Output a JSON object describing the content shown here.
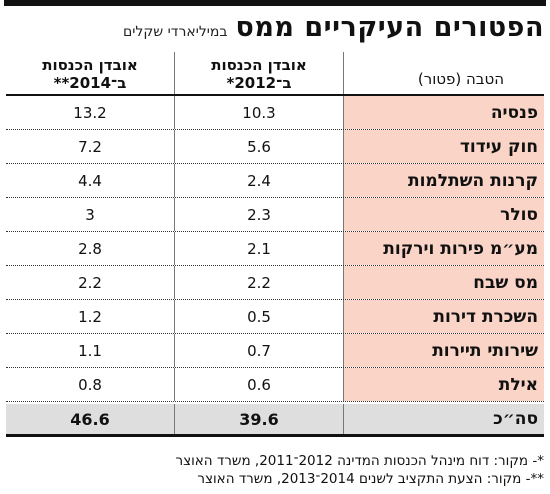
{
  "title": "הפטורים העיקריים ממס",
  "subtitle": "במיליארדי שקלים",
  "columns": {
    "name": "הטבה (פטור)",
    "y2012": [
      "אובדן הכנסות",
      "ב־2012*"
    ],
    "y2014": [
      "אובדן הכנסות",
      "ב־2014**"
    ]
  },
  "rows": [
    {
      "name": "פנסיה",
      "v2012": "10.3",
      "v2014": "13.2"
    },
    {
      "name": "חוק עידוד",
      "v2012": "5.6",
      "v2014": "7.2"
    },
    {
      "name": "קרנות השתלמות",
      "v2012": "2.4",
      "v2014": "4.4"
    },
    {
      "name": "סולר",
      "v2012": "2.3",
      "v2014": "3"
    },
    {
      "name": "מע״מ פירות וירקות",
      "v2012": "2.1",
      "v2014": "2.8"
    },
    {
      "name": "מס שבח",
      "v2012": "2.2",
      "v2014": "2.2"
    },
    {
      "name": "השכרת דירות",
      "v2012": "0.5",
      "v2014": "1.2"
    },
    {
      "name": "שירותי תיירות",
      "v2012": "0.7",
      "v2014": "1.1"
    },
    {
      "name": "אילת",
      "v2012": "0.6",
      "v2014": "0.8"
    }
  ],
  "total": {
    "name": "סה״כ",
    "v2012": "39.6",
    "v2014": "46.6"
  },
  "notes": [
    "*- מקור: דוח מינהל הכנסות המדינה 2012־2011, משרד האוצר",
    "**- מקור: הצעת התקציב לשנים 2014־2013, משרד האוצר"
  ],
  "colors": {
    "highlight": "#f9d4c7",
    "total_bg": "#dedede"
  }
}
